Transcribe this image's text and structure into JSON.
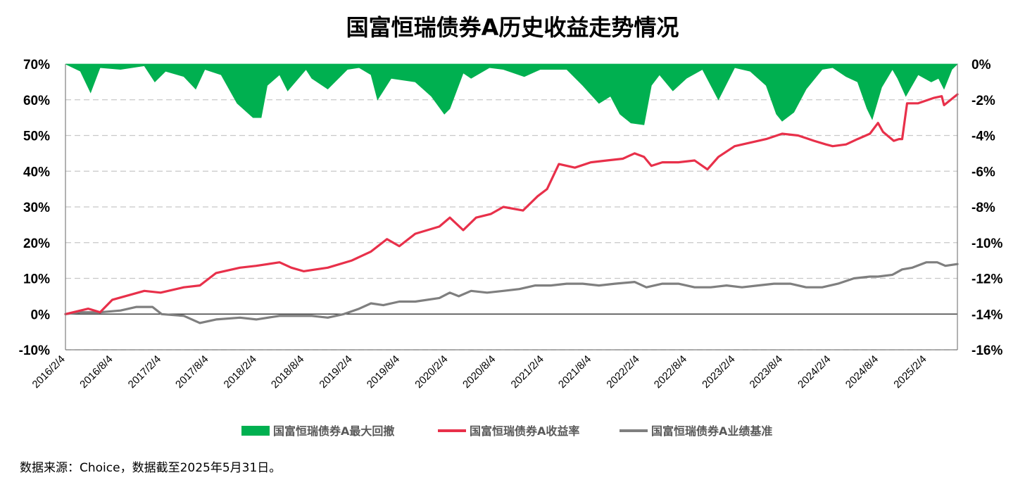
{
  "page": {
    "title": "国富恒瑞债券A历史收益走势情况",
    "source_note": "数据来源：Choice，数据截至2025年5月31日。"
  },
  "chart_data": {
    "type": "line",
    "title": "国富恒瑞债券A历史收益走势情况",
    "x_range": [
      "2016-02-04",
      "2025-05-31"
    ],
    "x_tick_labels": [
      "2016/2/4",
      "2016/8/4",
      "2017/2/4",
      "2017/8/4",
      "2018/2/4",
      "2018/8/4",
      "2019/2/4",
      "2019/8/4",
      "2020/2/4",
      "2020/8/4",
      "2021/2/4",
      "2021/8/4",
      "2022/2/4",
      "2022/8/4",
      "2023/2/4",
      "2023/8/4",
      "2024/2/4",
      "2024/8/4",
      "2025/2/4"
    ],
    "y_left": {
      "range": [
        -10,
        70
      ],
      "ticks": [
        -10,
        0,
        10,
        20,
        30,
        40,
        50,
        60,
        70
      ],
      "unit": "%"
    },
    "y_right": {
      "range": [
        -16,
        0
      ],
      "ticks": [
        -16,
        -14,
        -12,
        -10,
        -8,
        -6,
        -4,
        -2,
        0
      ],
      "unit": "%"
    },
    "grid": "horizontal dashed",
    "legend_position": "bottom",
    "colors": {
      "drawdown": "#00b050",
      "return": "#e8304a",
      "benchmark": "#7f7f7f"
    },
    "series": [
      {
        "name": "国富恒瑞债券A最大回撤",
        "type": "area",
        "axis": "right",
        "x": [
          "2016-02-04",
          "2016-04-01",
          "2016-05-10",
          "2016-06-15",
          "2016-09-01",
          "2016-12-01",
          "2017-01-10",
          "2017-02-20",
          "2017-05-01",
          "2017-06-15",
          "2017-07-20",
          "2017-09-20",
          "2017-11-20",
          "2018-01-20",
          "2018-02-20",
          "2018-03-15",
          "2018-05-01",
          "2018-06-01",
          "2018-08-10",
          "2018-09-01",
          "2018-11-01",
          "2019-01-15",
          "2019-03-01",
          "2019-04-15",
          "2019-05-10",
          "2019-07-01",
          "2019-10-01",
          "2019-12-01",
          "2020-01-20",
          "2020-02-10",
          "2020-04-01",
          "2020-05-01",
          "2020-07-10",
          "2020-09-01",
          "2020-11-20",
          "2021-01-20",
          "2021-05-01",
          "2021-07-01",
          "2021-09-01",
          "2021-10-15",
          "2021-11-20",
          "2022-01-01",
          "2022-02-20",
          "2022-03-20",
          "2022-04-20",
          "2022-06-10",
          "2022-08-01",
          "2022-10-01",
          "2022-12-01",
          "2023-02-01",
          "2023-04-01",
          "2023-06-01",
          "2023-07-10",
          "2023-08-01",
          "2023-09-15",
          "2023-11-01",
          "2024-01-01",
          "2024-02-10",
          "2024-04-01",
          "2024-05-15",
          "2024-06-20",
          "2024-07-10",
          "2024-08-15",
          "2024-09-25",
          "2024-10-15",
          "2024-11-15",
          "2025-01-01",
          "2025-02-20",
          "2025-03-20",
          "2025-04-10",
          "2025-05-10",
          "2025-05-31"
        ],
        "values": [
          0,
          -0.4,
          -1.6,
          -0.2,
          -0.3,
          -0.1,
          -1.0,
          -0.4,
          -0.7,
          -1.4,
          -0.3,
          -0.6,
          -2.2,
          -3.0,
          -3.0,
          -1.2,
          -0.6,
          -1.5,
          -0.3,
          -0.8,
          -1.4,
          -0.3,
          -0.2,
          -0.6,
          -2.0,
          -0.8,
          -1.0,
          -1.8,
          -2.8,
          -2.5,
          -0.5,
          -0.8,
          -0.2,
          -0.3,
          -0.7,
          -0.3,
          -0.3,
          -1.2,
          -2.2,
          -1.8,
          -2.8,
          -3.3,
          -3.4,
          -1.2,
          -0.6,
          -1.5,
          -0.8,
          -0.3,
          -2.0,
          -0.2,
          -0.4,
          -1.2,
          -2.8,
          -3.2,
          -2.7,
          -1.4,
          -0.3,
          -0.2,
          -0.7,
          -1.0,
          -2.5,
          -3.1,
          -1.3,
          -0.3,
          -0.8,
          -1.8,
          -0.6,
          -1.0,
          -0.8,
          -1.4,
          -0.3,
          0
        ]
      },
      {
        "name": "国富恒瑞债券A收益率",
        "type": "line",
        "axis": "left",
        "x": [
          "2016-02-04",
          "2016-05-01",
          "2016-06-15",
          "2016-08-01",
          "2016-12-01",
          "2017-02-01",
          "2017-05-01",
          "2017-07-01",
          "2017-09-01",
          "2017-12-01",
          "2018-02-01",
          "2018-05-01",
          "2018-06-15",
          "2018-08-01",
          "2018-11-01",
          "2019-02-01",
          "2019-04-15",
          "2019-06-15",
          "2019-08-01",
          "2019-10-01",
          "2020-01-01",
          "2020-02-10",
          "2020-04-01",
          "2020-05-20",
          "2020-07-15",
          "2020-09-01",
          "2020-11-15",
          "2021-01-10",
          "2021-02-15",
          "2021-04-01",
          "2021-06-01",
          "2021-08-01",
          "2021-10-01",
          "2021-12-01",
          "2022-01-15",
          "2022-02-20",
          "2022-03-20",
          "2022-05-01",
          "2022-07-01",
          "2022-09-01",
          "2022-10-20",
          "2022-12-01",
          "2023-02-01",
          "2023-04-01",
          "2023-06-01",
          "2023-08-01",
          "2023-10-01",
          "2023-12-01",
          "2024-01-15",
          "2024-02-10",
          "2024-04-01",
          "2024-05-15",
          "2024-07-01",
          "2024-08-01",
          "2024-08-20",
          "2024-09-30",
          "2024-10-20",
          "2024-11-01",
          "2024-11-20",
          "2025-01-01",
          "2025-03-01",
          "2025-04-01",
          "2025-04-10",
          "2025-05-31"
        ],
        "values": [
          0,
          1.5,
          0.5,
          4.0,
          6.5,
          6.0,
          7.5,
          8.0,
          11.5,
          13.0,
          13.5,
          14.5,
          13.0,
          12.0,
          13.0,
          15.0,
          17.5,
          21.0,
          19.0,
          22.5,
          24.5,
          27.0,
          23.5,
          27.0,
          28.0,
          30.0,
          29.0,
          33.0,
          35.0,
          42.0,
          41.0,
          42.5,
          43.0,
          43.5,
          45.0,
          44.0,
          41.5,
          42.5,
          42.5,
          43.0,
          40.5,
          44.0,
          47.0,
          48.0,
          49.0,
          50.5,
          50.0,
          48.5,
          47.5,
          47.0,
          47.5,
          49.0,
          50.5,
          53.5,
          51.0,
          48.5,
          49.0,
          49.0,
          59.0,
          59.0,
          60.5,
          61.0,
          58.5,
          61.5
        ]
      },
      {
        "name": "国富恒瑞债券A业绩基准",
        "type": "line",
        "axis": "left",
        "x": [
          "2016-02-04",
          "2016-04-01",
          "2016-06-15",
          "2016-09-01",
          "2016-11-01",
          "2017-01-01",
          "2017-02-05",
          "2017-05-01",
          "2017-07-01",
          "2017-09-01",
          "2017-12-01",
          "2018-02-01",
          "2018-05-01",
          "2018-07-01",
          "2018-09-01",
          "2018-11-01",
          "2019-01-01",
          "2019-03-01",
          "2019-04-15",
          "2019-06-01",
          "2019-08-01",
          "2019-10-01",
          "2020-01-01",
          "2020-02-10",
          "2020-03-15",
          "2020-05-01",
          "2020-07-01",
          "2020-09-01",
          "2020-11-01",
          "2021-01-01",
          "2021-03-01",
          "2021-05-01",
          "2021-07-01",
          "2021-09-01",
          "2021-11-01",
          "2022-01-15",
          "2022-03-01",
          "2022-05-01",
          "2022-07-01",
          "2022-09-01",
          "2022-11-01",
          "2023-01-01",
          "2023-03-01",
          "2023-05-01",
          "2023-07-01",
          "2023-09-01",
          "2023-11-01",
          "2024-01-01",
          "2024-03-01",
          "2024-05-01",
          "2024-07-01",
          "2024-08-01",
          "2024-09-25",
          "2024-11-01",
          "2024-12-10",
          "2025-02-01",
          "2025-03-15",
          "2025-04-15",
          "2025-05-31"
        ],
        "values": [
          0,
          0.5,
          0.5,
          1.0,
          2.0,
          2.0,
          0,
          -0.5,
          -2.5,
          -1.5,
          -1.0,
          -1.5,
          -0.5,
          -0.5,
          -0.5,
          -1.0,
          0,
          1.5,
          3.0,
          2.5,
          3.5,
          3.5,
          4.5,
          6.0,
          5.0,
          6.5,
          6.0,
          6.5,
          7.0,
          8.0,
          8.0,
          8.5,
          8.5,
          8.0,
          8.5,
          9.0,
          7.5,
          8.5,
          8.5,
          7.5,
          7.5,
          8.0,
          7.5,
          8.0,
          8.5,
          8.5,
          7.5,
          7.5,
          8.5,
          10.0,
          10.5,
          10.5,
          11.0,
          12.5,
          13.0,
          14.5,
          14.5,
          13.5,
          14.0
        ]
      }
    ]
  }
}
